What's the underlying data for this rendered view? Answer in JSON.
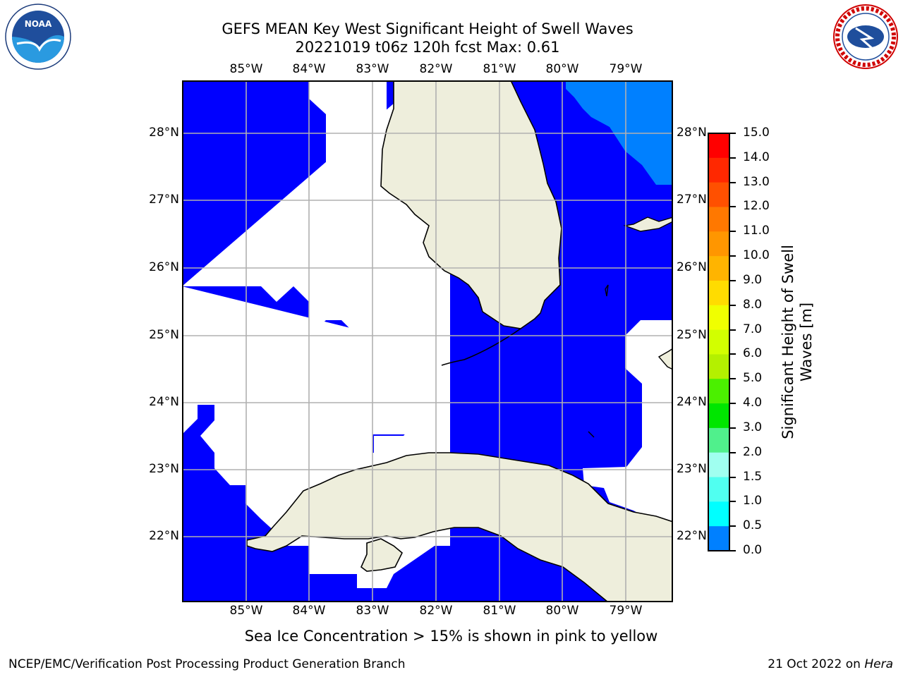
{
  "title": {
    "line1": "GEFS MEAN Key West Significant Height of Swell Waves",
    "line2": "20221019 t06z 120h fcst   Max: 0.61"
  },
  "map": {
    "lon_labels": [
      "85°W",
      "84°W",
      "83°W",
      "82°W",
      "81°W",
      "80°W",
      "79°W"
    ],
    "lat_labels": [
      "28°N",
      "27°N",
      "26°N",
      "25°N",
      "24°N",
      "23°N",
      "22°N"
    ],
    "colors": {
      "ocean_low": "#0000ff",
      "ocean_mid": "#0080ff",
      "land": "#eeeedc",
      "grid": "#b0b0b0",
      "nodata": "#ffffff"
    }
  },
  "colorbar": {
    "label": "Significant Height of Swell Waves [m]",
    "label_line1": "Significant Height of Swell",
    "label_line2": "Waves [m]",
    "ticks": [
      "15.0",
      "14.0",
      "13.0",
      "12.0",
      "11.0",
      "10.0",
      "9.0",
      "8.0",
      "7.0",
      "6.0",
      "5.0",
      "4.0",
      "3.0",
      "2.0",
      "1.5",
      "1.0",
      "0.5",
      "0.0"
    ],
    "bin_colors": [
      "#ff0000",
      "#ff2800",
      "#ff5000",
      "#ff7800",
      "#ff9600",
      "#ffb400",
      "#ffdc00",
      "#f0ff00",
      "#d2ff00",
      "#b4f000",
      "#82f000",
      "#4bf000",
      "#00e600",
      "#00c800",
      "#50f08c",
      "#a0fff0",
      "#50fff0",
      "#00ffff",
      "#0080ff",
      "#0000ff"
    ]
  },
  "note": "Sea Ice Concentration > 15% is shown in pink to yellow",
  "footer": {
    "left": "NCEP/EMC/Verification Post Processing Product Generation Branch",
    "date": "21 Oct 2022 on",
    "host": "Hera"
  },
  "logos": {
    "noaa": "NOAA",
    "nws": "NATIONAL WEATHER SERVICE"
  }
}
